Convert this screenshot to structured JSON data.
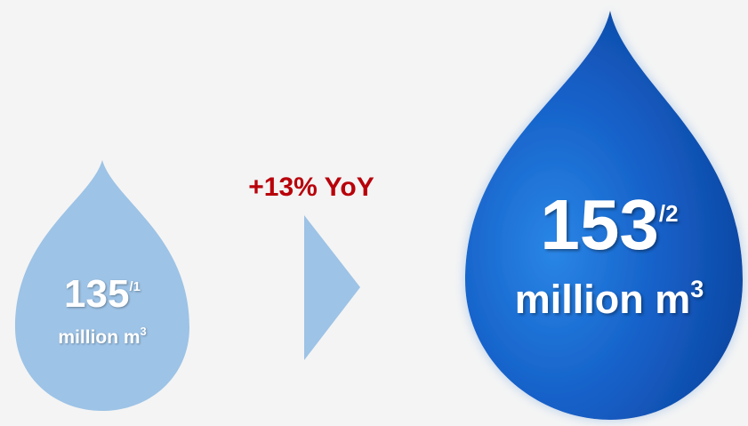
{
  "colors": {
    "background": "#f4f4f4",
    "small_drop": "#9dc3e6",
    "arrow": "#9dc3e6",
    "big_drop_light": "#1b74d6",
    "big_drop_dark": "#0a3f98",
    "yoy_text": "#b8000a"
  },
  "previous": {
    "value": "135",
    "footnote": "/1",
    "unit": "million m",
    "unit_power": "3"
  },
  "change": {
    "label": "+13% YoY"
  },
  "current": {
    "value": "153",
    "footnote": "/2",
    "unit": "million m",
    "unit_power": "3"
  }
}
